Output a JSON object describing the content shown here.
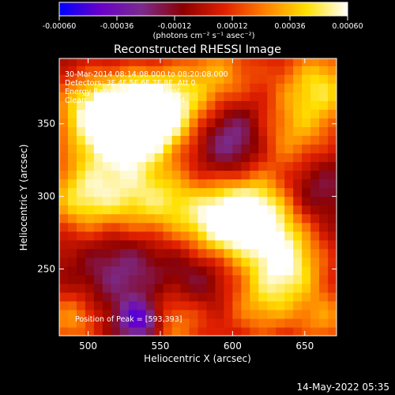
{
  "chart_data": {
    "type": "heatmap",
    "title": "Reconstructed RHESSI Image",
    "xlabel": "Heliocentric X (arcsec)",
    "ylabel": "Heliocentric Y (arcsec)",
    "xlim": [
      480,
      672
    ],
    "ylim": [
      204,
      395
    ],
    "xticks": [
      500,
      550,
      600,
      650
    ],
    "yticks": [
      250,
      300,
      350
    ],
    "colorbar": {
      "range": [
        -0.0006,
        0.0006
      ],
      "ticks": [
        "-0.00060",
        "-0.00036",
        "-0.00012",
        "0.00012",
        "0.00036",
        "0.00060"
      ],
      "unit_label": "(photons cm⁻² s⁻¹ asec⁻²)",
      "colormap": [
        "#0000ff",
        "#6a00c8",
        "#7a2b8e",
        "#8b0000",
        "#e02000",
        "#ff8000",
        "#ffe000",
        "#ffffff"
      ]
    },
    "annotations": {
      "time_range": "30-Mar-2014 08:14:08.000 to 08:20:08.000",
      "detectors": "Detectors: 3F 4F 5F 6F 7F 8F, Att 0",
      "energy_range": "Energy Range: 12.0 - 25.0 keV",
      "algorithm": "Clean     Total counts: 1.45E+04",
      "peak": "Position of Peak = [593,393]"
    },
    "grid": false,
    "hotspots": [
      {
        "x": 535,
        "y": 355,
        "v": 1.0,
        "w": 18
      },
      {
        "x": 520,
        "y": 345,
        "v": 0.8,
        "w": 22
      },
      {
        "x": 555,
        "y": 360,
        "v": 0.7,
        "w": 18
      },
      {
        "x": 495,
        "y": 300,
        "v": 0.75,
        "w": 18
      },
      {
        "x": 530,
        "y": 300,
        "v": 0.6,
        "w": 20
      },
      {
        "x": 560,
        "y": 295,
        "v": 0.55,
        "w": 18
      },
      {
        "x": 590,
        "y": 280,
        "v": 0.7,
        "w": 16
      },
      {
        "x": 610,
        "y": 295,
        "v": 0.8,
        "w": 20
      },
      {
        "x": 625,
        "y": 275,
        "v": 0.65,
        "w": 20
      },
      {
        "x": 640,
        "y": 250,
        "v": 0.7,
        "w": 18
      },
      {
        "x": 620,
        "y": 225,
        "v": 0.55,
        "w": 18
      },
      {
        "x": 660,
        "y": 375,
        "v": 0.8,
        "w": 20
      },
      {
        "x": 640,
        "y": 340,
        "v": 0.5,
        "w": 18
      },
      {
        "x": 560,
        "y": 215,
        "v": 0.55,
        "w": 18
      },
      {
        "x": 590,
        "y": 380,
        "v": 0.65,
        "w": 20
      },
      {
        "x": 500,
        "y": 360,
        "v": 0.6,
        "w": 18
      },
      {
        "x": 488,
        "y": 215,
        "v": 0.55,
        "w": 14
      },
      {
        "x": 665,
        "y": 215,
        "v": 0.5,
        "w": 14
      },
      {
        "x": 536,
        "y": 215,
        "v": -0.85,
        "w": 10
      },
      {
        "x": 600,
        "y": 330,
        "v": -0.4,
        "w": 18
      },
      {
        "x": 525,
        "y": 250,
        "v": -0.35,
        "w": 20
      },
      {
        "x": 655,
        "y": 305,
        "v": -0.3,
        "w": 16
      },
      {
        "x": 575,
        "y": 240,
        "v": -0.3,
        "w": 16
      },
      {
        "x": 600,
        "y": 355,
        "v": -0.3,
        "w": 16
      }
    ]
  },
  "footer": {
    "date": "14-May-2022 05:35"
  }
}
